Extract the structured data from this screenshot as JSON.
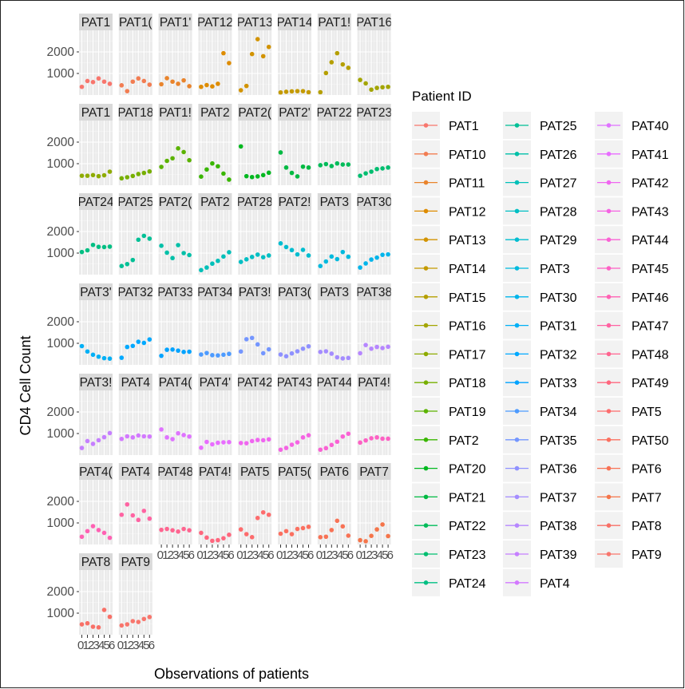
{
  "chart_data": {
    "type": "scatter",
    "facet": "patient",
    "ylabel": "CD4 Cell Count",
    "xlabel": "Observations of patients",
    "y_ticks": [
      1000,
      2000
    ],
    "y_ticks_text": [
      "1000",
      "2000"
    ],
    "ylim": [
      0,
      3000
    ],
    "xlim": [
      0.5,
      6.5
    ],
    "x_tick_labels": [
      "0",
      "1",
      "2",
      "3",
      "4",
      "5",
      "6"
    ],
    "grid": true,
    "legend": {
      "title": "Patient ID",
      "placement": "right",
      "columns": 3
    },
    "panel_order": [
      "PAT1",
      "PAT10",
      "PAT11",
      "PAT12",
      "PAT13",
      "PAT14",
      "PAT15",
      "PAT16",
      "PAT17",
      "PAT18",
      "PAT19",
      "PAT2",
      "PAT20",
      "PAT21",
      "PAT22",
      "PAT23",
      "PAT24",
      "PAT25",
      "PAT26",
      "PAT27",
      "PAT28",
      "PAT29",
      "PAT3",
      "PAT30",
      "PAT31",
      "PAT32",
      "PAT33",
      "PAT34",
      "PAT35",
      "PAT36",
      "PAT37",
      "PAT38",
      "PAT39",
      "PAT4",
      "PAT40",
      "PAT41",
      "PAT42",
      "PAT43",
      "PAT44",
      "PAT45",
      "PAT46",
      "PAT47",
      "PAT48",
      "PAT49",
      "PAT5",
      "PAT50",
      "PAT6",
      "PAT7",
      "PAT8",
      "PAT9"
    ],
    "strip_labels": [
      "PAT1",
      "PAT1(",
      "PAT1'",
      "PAT12",
      "PAT13",
      "PAT14",
      "PAT1!",
      "PAT16",
      "PAT1",
      "PAT18",
      "PAT1!",
      "PAT2",
      "PAT2(",
      "PAT2'",
      "PAT22",
      "PAT23",
      "PAT24",
      "PAT25",
      "PAT2(",
      "PAT2",
      "PAT28",
      "PAT2!",
      "PAT3",
      "PAT30",
      "PAT3'",
      "PAT32",
      "PAT33",
      "PAT34",
      "PAT3!",
      "PAT3(",
      "PAT3",
      "PAT38",
      "PAT3!",
      "PAT4",
      "PAT4(",
      "PAT4'",
      "PAT42",
      "PAT43",
      "PAT44",
      "PAT4!",
      "PAT4(",
      "PAT4",
      "PAT48",
      "PAT4!",
      "PAT5",
      "PAT5(",
      "PAT6",
      "PAT7",
      "PAT8",
      "PAT9"
    ],
    "legend_order": [
      "PAT1",
      "PAT10",
      "PAT11",
      "PAT12",
      "PAT13",
      "PAT14",
      "PAT15",
      "PAT16",
      "PAT17",
      "PAT18",
      "PAT19",
      "PAT2",
      "PAT20",
      "PAT21",
      "PAT22",
      "PAT23",
      "PAT24",
      "PAT25",
      "PAT26",
      "PAT27",
      "PAT28",
      "PAT29",
      "PAT3",
      "PAT30",
      "PAT31",
      "PAT32",
      "PAT33",
      "PAT34",
      "PAT35",
      "PAT36",
      "PAT37",
      "PAT38",
      "PAT39",
      "PAT4",
      "PAT40",
      "PAT41",
      "PAT42",
      "PAT43",
      "PAT44",
      "PAT45",
      "PAT46",
      "PAT47",
      "PAT48",
      "PAT49",
      "PAT5",
      "PAT50",
      "PAT6",
      "PAT7",
      "PAT8",
      "PAT9"
    ],
    "series": [
      {
        "name": "PAT1",
        "color": "#F8766D",
        "x": [
          1,
          2,
          3,
          4,
          5,
          6
        ],
        "y": [
          380,
          650,
          600,
          770,
          620,
          520
        ]
      },
      {
        "name": "PAT10",
        "color": "#F27D52",
        "x": [
          1,
          2,
          3,
          4,
          5,
          6
        ],
        "y": [
          450,
          180,
          620,
          770,
          650,
          480
        ]
      },
      {
        "name": "PAT11",
        "color": "#E9842C",
        "x": [
          1,
          2,
          3,
          4,
          5,
          6
        ],
        "y": [
          500,
          780,
          620,
          520,
          680,
          410
        ]
      },
      {
        "name": "PAT12",
        "color": "#DE8C00",
        "x": [
          1,
          2,
          3,
          4,
          5,
          6
        ],
        "y": [
          380,
          460,
          400,
          520,
          1940,
          1480
        ]
      },
      {
        "name": "PAT13",
        "color": "#D29300",
        "x": [
          1,
          2,
          3,
          4,
          5,
          6
        ],
        "y": [
          220,
          420,
          1900,
          2590,
          1800,
          2230
        ]
      },
      {
        "name": "PAT14",
        "color": "#C49A00",
        "x": [
          1,
          2,
          3,
          4,
          5,
          6
        ],
        "y": [
          120,
          150,
          170,
          180,
          180,
          130
        ]
      },
      {
        "name": "PAT15",
        "color": "#B59F00",
        "x": [
          1,
          2,
          3,
          4,
          5,
          6
        ],
        "y": [
          130,
          1020,
          1520,
          1940,
          1420,
          1260
        ]
      },
      {
        "name": "PAT16",
        "color": "#A3A500",
        "x": [
          1,
          2,
          3,
          4,
          5,
          6
        ],
        "y": [
          700,
          540,
          250,
          330,
          360,
          380
        ]
      },
      {
        "name": "PAT17",
        "color": "#8EAB00",
        "x": [
          1,
          2,
          3,
          4,
          5,
          6
        ],
        "y": [
          440,
          440,
          470,
          420,
          460,
          630
        ]
      },
      {
        "name": "PAT18",
        "color": "#77AF00",
        "x": [
          1,
          2,
          3,
          4,
          5,
          6
        ],
        "y": [
          320,
          370,
          430,
          520,
          570,
          640
        ]
      },
      {
        "name": "PAT19",
        "color": "#5BB300",
        "x": [
          1,
          2,
          3,
          4,
          5,
          6
        ],
        "y": [
          850,
          1130,
          1250,
          1710,
          1540,
          1160
        ]
      },
      {
        "name": "PAT2",
        "color": "#39B600",
        "x": [
          1,
          2,
          3,
          4,
          5,
          6
        ],
        "y": [
          400,
          730,
          1010,
          880,
          540,
          260
        ]
      },
      {
        "name": "PAT20",
        "color": "#00B81F",
        "x": [
          1,
          2,
          3,
          4,
          5,
          6
        ],
        "y": [
          1800,
          420,
          380,
          410,
          470,
          580
        ]
      },
      {
        "name": "PAT21",
        "color": "#00BA42",
        "x": [
          1,
          2,
          3,
          4,
          5,
          6
        ],
        "y": [
          1520,
          820,
          570,
          410,
          860,
          820
        ]
      },
      {
        "name": "PAT22",
        "color": "#00BC5A",
        "x": [
          1,
          2,
          3,
          4,
          5,
          6
        ],
        "y": [
          930,
          980,
          890,
          1010,
          960,
          960
        ]
      },
      {
        "name": "PAT23",
        "color": "#00BE70",
        "x": [
          1,
          2,
          3,
          4,
          5,
          6
        ],
        "y": [
          440,
          550,
          630,
          750,
          780,
          820
        ]
      },
      {
        "name": "PAT24",
        "color": "#00BF83",
        "x": [
          1,
          2,
          3,
          4,
          5,
          6
        ],
        "y": [
          1050,
          1130,
          1380,
          1290,
          1280,
          1300
        ]
      },
      {
        "name": "PAT25",
        "color": "#00C096",
        "x": [
          1,
          2,
          3,
          4,
          5,
          6
        ],
        "y": [
          400,
          490,
          680,
          1620,
          1800,
          1670
        ]
      },
      {
        "name": "PAT26",
        "color": "#00C0A8",
        "x": [
          1,
          2,
          3,
          4,
          5,
          6
        ],
        "y": [
          1340,
          1020,
          770,
          1370,
          1000,
          910
        ]
      },
      {
        "name": "PAT27",
        "color": "#00C0B9",
        "x": [
          1,
          2,
          3,
          4,
          5,
          6
        ],
        "y": [
          210,
          330,
          510,
          640,
          840,
          1040
        ]
      },
      {
        "name": "PAT28",
        "color": "#00BFC4",
        "x": [
          1,
          2,
          3,
          4,
          5,
          6
        ],
        "y": [
          590,
          710,
          820,
          930,
          810,
          890
        ]
      },
      {
        "name": "PAT29",
        "color": "#00BDD0",
        "x": [
          1,
          2,
          3,
          4,
          5,
          6
        ],
        "y": [
          1450,
          1280,
          1140,
          940,
          1150,
          890
        ]
      },
      {
        "name": "PAT3",
        "color": "#00BADE",
        "x": [
          1,
          2,
          3,
          4,
          5,
          6
        ],
        "y": [
          400,
          610,
          840,
          720,
          1050,
          830
        ]
      },
      {
        "name": "PAT30",
        "color": "#00B5EB",
        "x": [
          1,
          2,
          3,
          4,
          5,
          6
        ],
        "y": [
          330,
          520,
          700,
          790,
          920,
          940
        ]
      },
      {
        "name": "PAT31",
        "color": "#00B0F6",
        "x": [
          1,
          2,
          3,
          4,
          5,
          6
        ],
        "y": [
          870,
          620,
          470,
          380,
          310,
          290
        ]
      },
      {
        "name": "PAT32",
        "color": "#00A9FF",
        "x": [
          1,
          2,
          3,
          4,
          5,
          6
        ],
        "y": [
          330,
          830,
          880,
          1070,
          1020,
          1180
        ]
      },
      {
        "name": "PAT33",
        "color": "#00A3FF",
        "x": [
          1,
          2,
          3,
          4,
          5,
          6
        ],
        "y": [
          420,
          700,
          710,
          660,
          600,
          610
        ]
      },
      {
        "name": "PAT34",
        "color": "#4D9BFF",
        "x": [
          1,
          2,
          3,
          4,
          5,
          6
        ],
        "y": [
          480,
          550,
          450,
          440,
          470,
          510
        ]
      },
      {
        "name": "PAT35",
        "color": "#7496FF",
        "x": [
          1,
          2,
          3,
          4,
          5,
          6
        ],
        "y": [
          620,
          1190,
          1250,
          950,
          540,
          720
        ]
      },
      {
        "name": "PAT36",
        "color": "#8F91FF",
        "x": [
          1,
          2,
          3,
          4,
          5,
          6
        ],
        "y": [
          480,
          400,
          530,
          630,
          750,
          860
        ]
      },
      {
        "name": "PAT37",
        "color": "#A48CFF",
        "x": [
          1,
          2,
          3,
          4,
          5,
          6
        ],
        "y": [
          600,
          630,
          520,
          350,
          300,
          320
        ]
      },
      {
        "name": "PAT38",
        "color": "#B686FF",
        "x": [
          1,
          2,
          3,
          4,
          5,
          6
        ],
        "y": [
          540,
          920,
          750,
          830,
          780,
          840
        ]
      },
      {
        "name": "PAT39",
        "color": "#C67FFF",
        "x": [
          1,
          2,
          3,
          4,
          5,
          6
        ],
        "y": [
          330,
          650,
          520,
          690,
          830,
          1020
        ]
      },
      {
        "name": "PAT4",
        "color": "#D379FF",
        "x": [
          1,
          2,
          3,
          4,
          5,
          6
        ],
        "y": [
          750,
          870,
          820,
          910,
          870,
          860
        ]
      },
      {
        "name": "PAT40",
        "color": "#DF73FF",
        "x": [
          1,
          2,
          3,
          4,
          5,
          6
        ],
        "y": [
          1190,
          820,
          740,
          1010,
          930,
          860
        ]
      },
      {
        "name": "PAT41",
        "color": "#E86DFF",
        "x": [
          1,
          2,
          3,
          4,
          5,
          6
        ],
        "y": [
          340,
          610,
          500,
          570,
          590,
          600
        ]
      },
      {
        "name": "PAT42",
        "color": "#F066F0",
        "x": [
          1,
          2,
          3,
          4,
          5,
          6
        ],
        "y": [
          560,
          550,
          650,
          700,
          690,
          730
        ]
      },
      {
        "name": "PAT43",
        "color": "#F564E3",
        "x": [
          1,
          2,
          3,
          4,
          5,
          6
        ],
        "y": [
          250,
          330,
          480,
          590,
          820,
          920
        ]
      },
      {
        "name": "PAT44",
        "color": "#FA62D4",
        "x": [
          1,
          2,
          3,
          4,
          5,
          6
        ],
        "y": [
          250,
          320,
          470,
          620,
          860,
          990
        ]
      },
      {
        "name": "PAT45",
        "color": "#FD61C4",
        "x": [
          1,
          2,
          3,
          4,
          5,
          6
        ],
        "y": [
          580,
          680,
          780,
          820,
          760,
          760
        ]
      },
      {
        "name": "PAT46",
        "color": "#FF61B3",
        "x": [
          1,
          2,
          3,
          4,
          5,
          6
        ],
        "y": [
          360,
          620,
          850,
          670,
          540,
          310
        ]
      },
      {
        "name": "PAT47",
        "color": "#FF63A2",
        "x": [
          1,
          2,
          3,
          4,
          5,
          6
        ],
        "y": [
          1380,
          1860,
          1350,
          1140,
          1560,
          1200
        ]
      },
      {
        "name": "PAT48",
        "color": "#FF6590",
        "x": [
          1,
          2,
          3,
          4,
          5,
          6
        ],
        "y": [
          680,
          720,
          660,
          600,
          720,
          660
        ]
      },
      {
        "name": "PAT49",
        "color": "#FF677E",
        "x": [
          1,
          2,
          3,
          4,
          5,
          6
        ],
        "y": [
          540,
          320,
          170,
          200,
          290,
          450
        ]
      },
      {
        "name": "PAT5",
        "color": "#FD6C6D",
        "x": [
          1,
          2,
          3,
          4,
          5,
          6
        ],
        "y": [
          700,
          480,
          340,
          1230,
          1490,
          1380
        ]
      },
      {
        "name": "PAT50",
        "color": "#FB7060",
        "x": [
          1,
          2,
          3,
          4,
          5,
          6
        ],
        "y": [
          500,
          620,
          480,
          720,
          760,
          820
        ]
      },
      {
        "name": "PAT6",
        "color": "#F87255",
        "x": [
          1,
          2,
          3,
          4,
          5,
          6
        ],
        "y": [
          340,
          360,
          670,
          1100,
          840,
          410
        ]
      },
      {
        "name": "PAT7",
        "color": "#F5754A",
        "x": [
          1,
          2,
          3,
          4,
          5,
          6
        ],
        "y": [
          200,
          150,
          400,
          700,
          930,
          390
        ]
      },
      {
        "name": "PAT8",
        "color": "#F87067",
        "x": [
          1,
          2,
          3,
          4,
          5,
          6
        ],
        "y": [
          480,
          530,
          370,
          340,
          1150,
          830
        ]
      },
      {
        "name": "PAT9",
        "color": "#F8766D",
        "x": [
          1,
          2,
          3,
          4,
          5,
          6
        ],
        "y": [
          430,
          480,
          630,
          590,
          730,
          820
        ]
      }
    ]
  }
}
